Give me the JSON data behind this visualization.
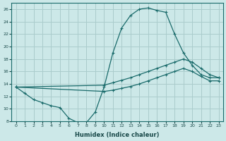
{
  "xlabel": "Humidex (Indice chaleur)",
  "bg_color": "#cce8e8",
  "grid_color": "#aacccc",
  "line_color": "#1a6b6b",
  "xlim": [
    -0.5,
    23.5
  ],
  "ylim": [
    8,
    27
  ],
  "xticks": [
    0,
    1,
    2,
    3,
    4,
    5,
    6,
    7,
    8,
    9,
    10,
    11,
    12,
    13,
    14,
    15,
    16,
    17,
    18,
    19,
    20,
    21,
    22,
    23
  ],
  "yticks": [
    8,
    10,
    12,
    14,
    16,
    18,
    20,
    22,
    24,
    26
  ],
  "curve1_x": [
    0,
    1,
    2,
    3,
    4,
    5,
    6,
    7,
    8,
    9,
    10,
    11,
    12,
    13,
    14,
    15,
    16,
    17,
    18,
    19,
    20,
    21,
    22,
    23
  ],
  "curve1_y": [
    13.5,
    12.5,
    11.5,
    11.0,
    10.5,
    10.2,
    8.5,
    7.8,
    7.8,
    9.5,
    13.5,
    19.0,
    23.0,
    25.0,
    26.0,
    26.2,
    25.8,
    25.5,
    22.0,
    19.0,
    17.0,
    15.5,
    15.0,
    15.0
  ],
  "curve2_x": [
    0,
    10,
    11,
    12,
    13,
    14,
    15,
    16,
    17,
    18,
    19,
    20,
    21,
    22,
    23
  ],
  "curve2_y": [
    13.5,
    13.8,
    14.2,
    14.6,
    15.0,
    15.5,
    16.0,
    16.5,
    17.0,
    17.5,
    18.0,
    17.5,
    16.5,
    15.5,
    15.0
  ],
  "curve3_x": [
    0,
    10,
    11,
    12,
    13,
    14,
    15,
    16,
    17,
    18,
    19,
    20,
    21,
    22,
    23
  ],
  "curve3_y": [
    13.5,
    12.8,
    13.0,
    13.3,
    13.6,
    14.0,
    14.5,
    15.0,
    15.5,
    16.0,
    16.5,
    16.0,
    15.2,
    14.5,
    14.5
  ]
}
